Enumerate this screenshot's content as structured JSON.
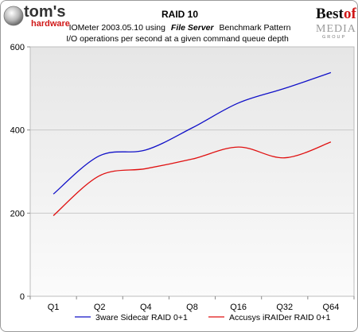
{
  "header": {
    "title": "RAID 10",
    "subtitle_prefix": "IOMeter 2003.05.10 using",
    "subtitle_emph": "File Server",
    "subtitle_suffix": "Benchmark Pattern",
    "subtitle_line2": "I/O operations per second at a given command queue depth"
  },
  "logos": {
    "left_main": "tom's",
    "left_sub": "hardware",
    "right_best": "Best",
    "right_of": "of",
    "right_media": "MEDIA",
    "right_group": "GROUP"
  },
  "chart_data": {
    "type": "line",
    "categories": [
      "Q1",
      "Q2",
      "Q4",
      "Q8",
      "Q16",
      "Q32",
      "Q64"
    ],
    "ylim": [
      0,
      600
    ],
    "yticks": [
      "0",
      "200",
      "400",
      "600"
    ],
    "grid": true,
    "legend_position": "bottom",
    "series": [
      {
        "name": "3ware Sidecar RAID 0+1",
        "color": "#1010c8",
        "values": [
          246,
          338,
          352,
          405,
          465,
          500,
          538
        ]
      },
      {
        "name": "Accusys iRAIDer RAID 0+1",
        "color": "#e01010",
        "values": [
          194,
          290,
          307,
          330,
          359,
          333,
          371
        ]
      }
    ]
  }
}
